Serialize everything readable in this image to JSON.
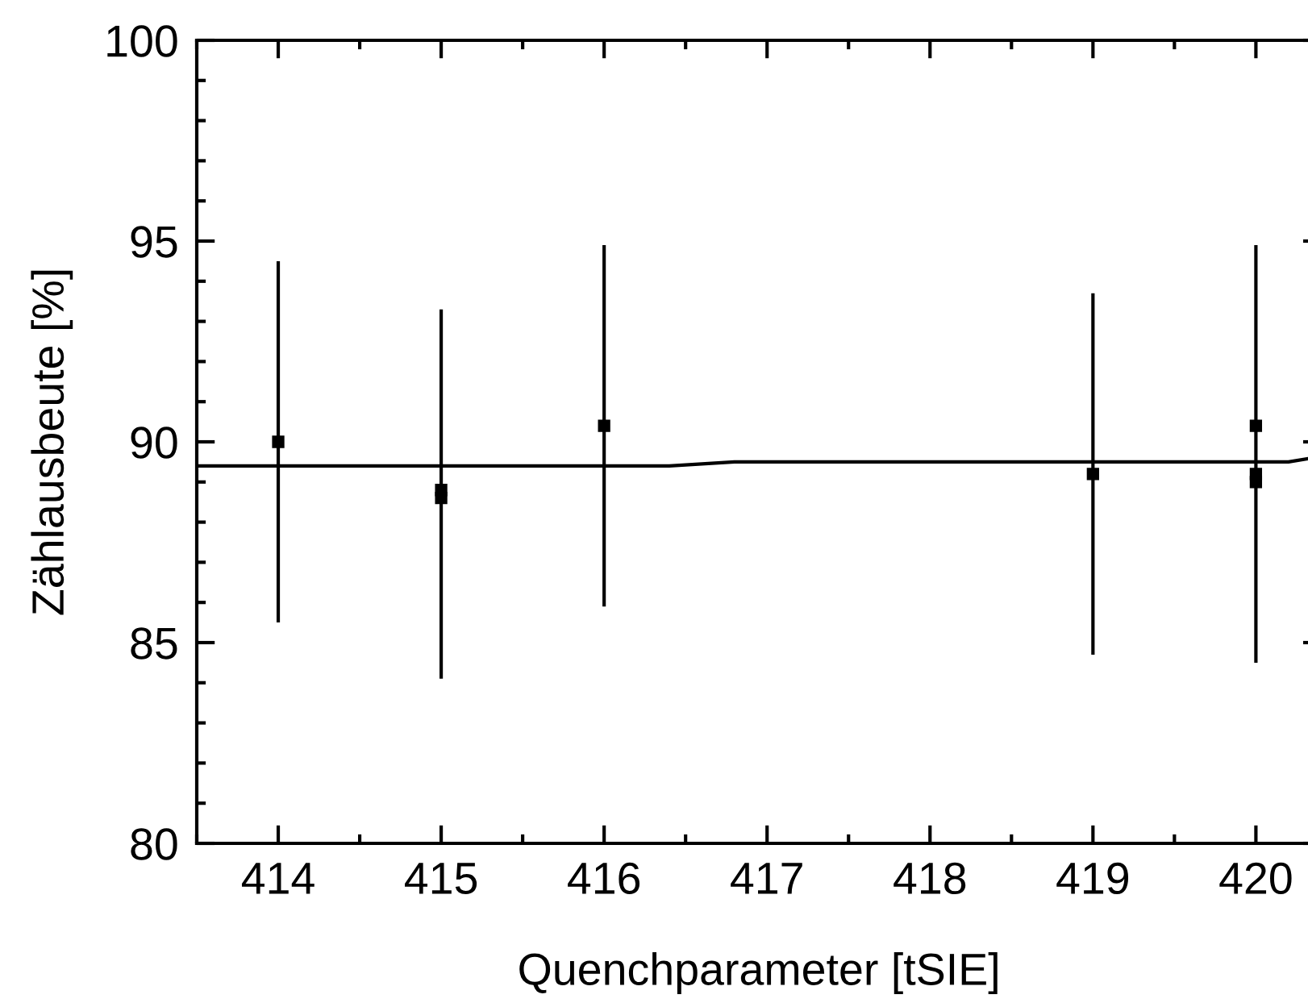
{
  "chart_data": {
    "type": "scatter",
    "xlabel": "Quenchparameter [tSIE]",
    "ylabel": "Zählausbeute [%]",
    "xlim": [
      413.5,
      420.4
    ],
    "xticks": [
      414,
      415,
      416,
      417,
      418,
      419,
      420
    ],
    "ylim": [
      80,
      100
    ],
    "yticks": [
      80,
      85,
      90,
      95,
      100
    ],
    "grid": false,
    "legend": false,
    "series": [
      {
        "color": "#000000",
        "marker": "square",
        "x": [
          414,
          415,
          415,
          416,
          419,
          420,
          420,
          420
        ],
        "values": [
          90.0,
          88.8,
          88.6,
          90.4,
          89.2,
          90.4,
          89.2,
          89.0
        ],
        "errors": [
          4.5,
          [
            84.1,
            93.3
          ],
          null,
          4.5,
          4.5,
          [
            84.5,
            94.9
          ],
          null,
          null
        ]
      },
      {
        "type": "line",
        "color": "#000000",
        "marker": "none",
        "line_style": "solid",
        "x": [
          413.5,
          416.4,
          416.8,
          420.2,
          420.35
        ],
        "values": [
          89.4,
          89.4,
          89.5,
          89.5,
          89.6
        ]
      }
    ]
  }
}
